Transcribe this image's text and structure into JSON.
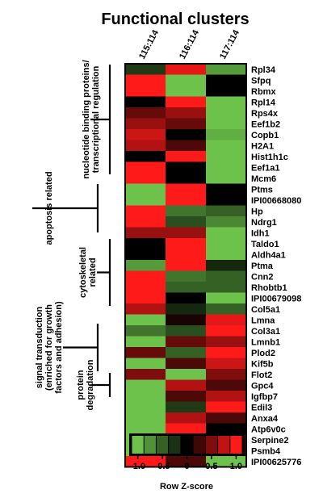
{
  "chart_data": {
    "type": "heatmap",
    "title": "Functional clusters",
    "columns": [
      "115:114",
      "116:114",
      "117:114"
    ],
    "rows": [
      "Rpl34",
      "Sfpq",
      "Rbmx",
      "Rpl14",
      "Rps4x",
      "Eef1b2",
      "Copb1",
      "H2A1",
      "Hist1h1c",
      "Eef1a1",
      "Mcm6",
      "Ptms",
      "IPI00668080",
      "Hp",
      "Ndrg1",
      "Idh1",
      "Taldo1",
      "Aldh4a1",
      "Ptma",
      "Cnn2",
      "Rhobtb1",
      "IPI00679098",
      "Col5a1",
      "Lmna",
      "Col3a1",
      "Lmnb1",
      "Plod2",
      "Kif5b",
      "Flot2",
      "Gpc4",
      "Igfbp7",
      "Edil3",
      "Anxa4",
      "Atp6v0c",
      "Serpine2",
      "Psmb4",
      "IPI00625776"
    ],
    "values": [
      [
        -0.3,
        0.9,
        -0.8
      ],
      [
        1.0,
        -1.0,
        0.0
      ],
      [
        1.0,
        -1.0,
        0.0
      ],
      [
        0.0,
        1.0,
        -1.0
      ],
      [
        0.4,
        0.6,
        -1.0
      ],
      [
        0.6,
        0.4,
        -1.0
      ],
      [
        0.8,
        0.0,
        -0.9
      ],
      [
        0.7,
        0.3,
        -1.0
      ],
      [
        0.0,
        1.0,
        -1.0
      ],
      [
        1.0,
        0.0,
        -1.0
      ],
      [
        1.0,
        0.0,
        -1.0
      ],
      [
        -1.0,
        1.0,
        0.0
      ],
      [
        -1.0,
        1.0,
        0.0
      ],
      [
        1.0,
        -0.6,
        -0.5
      ],
      [
        1.0,
        -0.4,
        -0.7
      ],
      [
        0.6,
        0.6,
        -1.0
      ],
      [
        0.0,
        1.0,
        -1.0
      ],
      [
        0.0,
        1.0,
        -1.0
      ],
      [
        -0.8,
        1.0,
        -0.2
      ],
      [
        1.0,
        -0.6,
        -0.5
      ],
      [
        1.0,
        -0.5,
        -0.5
      ],
      [
        1.0,
        0.0,
        -1.0
      ],
      [
        0.7,
        -0.2,
        -0.5
      ],
      [
        -1.0,
        0.1,
        0.9
      ],
      [
        -0.6,
        -0.4,
        1.0
      ],
      [
        -1.0,
        0.4,
        0.6
      ],
      [
        0.4,
        -0.5,
        1.0
      ],
      [
        -1.0,
        0.3,
        0.8
      ],
      [
        0.5,
        -1.0,
        0.5
      ],
      [
        -1.0,
        0.7,
        0.3
      ],
      [
        -1.0,
        0.3,
        0.7
      ],
      [
        -1.0,
        -0.3,
        1.0
      ],
      [
        -1.0,
        0.7,
        0.3
      ],
      [
        -1.0,
        1.0,
        0.0
      ],
      [
        -1.0,
        0.7,
        0.3
      ],
      [
        -1.0,
        0.7,
        0.3
      ],
      [
        1.0,
        0.3,
        -1.0
      ]
    ],
    "clusters": [
      {
        "label": "nucleotide binding proteins/ transcriptional regulation",
        "lines": [
          "nucleotide binding proteins/",
          "transcriptional regulation"
        ]
      },
      {
        "label": "apoptosis related",
        "lines": [
          "apoptosis related"
        ]
      },
      {
        "label": "cytoskeletal related",
        "lines": [
          "cytoskeletal",
          "related"
        ]
      },
      {
        "label": "signal transduction (enriched for growth factors and adhesion)",
        "lines": [
          "signal transduction",
          "(enriched for growth",
          "factors and adhesion)"
        ]
      },
      {
        "label": "protein degradation",
        "lines": [
          "protein",
          "degradation"
        ]
      }
    ],
    "colorscale": {
      "low": "#6cc24a",
      "mid": "#000000",
      "high": "#ff1a1a",
      "range": [
        -1.0,
        1.0
      ],
      "swatches": [
        -1.0,
        -0.75,
        -0.5,
        -0.25,
        0.0,
        0.25,
        0.5,
        0.75,
        1.0
      ],
      "ticks": [
        "-1.0",
        "-0.5",
        "0",
        "0.5",
        "1.0"
      ],
      "ticks_values": [
        -1.0,
        -0.5,
        0.0,
        0.5,
        1.0
      ],
      "title": "Row Z-score"
    }
  }
}
